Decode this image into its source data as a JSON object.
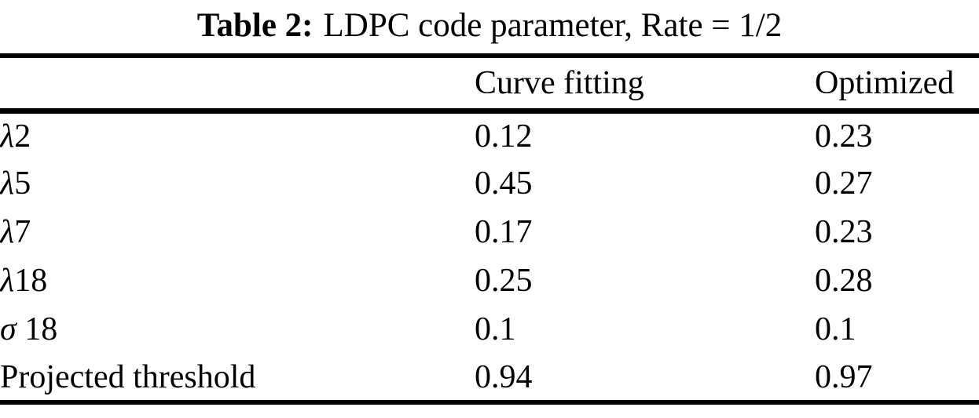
{
  "title": {
    "label": "Table 2:",
    "text": "LDPC code parameter, Rate = 1/2"
  },
  "colors": {
    "text": "#000000",
    "rule": "#000000",
    "background": "#ffffff"
  },
  "table": {
    "headers": {
      "label": "",
      "curve_fitting": "Curve fitting",
      "optimized": "Optimized"
    },
    "rows": [
      {
        "symbol": "λ",
        "suffix": "2",
        "curve_fitting": "0.12",
        "optimized": "0.23"
      },
      {
        "symbol": "λ",
        "suffix": "5",
        "curve_fitting": "0.45",
        "optimized": "0.27"
      },
      {
        "symbol": "λ",
        "suffix": "7",
        "curve_fitting": "0.17",
        "optimized": "0.23"
      },
      {
        "symbol": "λ",
        "suffix": "18",
        "curve_fitting": "0.25",
        "optimized": "0.28"
      },
      {
        "symbol": "σ",
        "suffix": " 18",
        "curve_fitting": "0.1",
        "optimized": "0.1"
      },
      {
        "symbol": "",
        "suffix": "Projected threshold",
        "curve_fitting": "0.94",
        "optimized": "0.97"
      }
    ]
  }
}
